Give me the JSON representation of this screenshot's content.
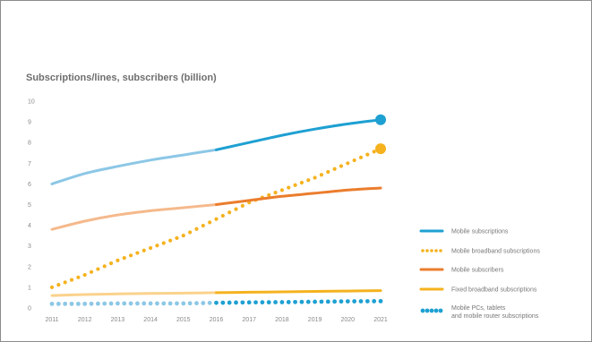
{
  "chart_data": {
    "type": "line",
    "title": "Subscriptions/lines, subscribers (billion)",
    "xlabel": "",
    "ylabel": "",
    "categories": [
      "2011",
      "2012",
      "2013",
      "2014",
      "2015",
      "2016",
      "2017",
      "2018",
      "2019",
      "2020",
      "2021"
    ],
    "ylim": [
      0,
      10
    ],
    "yticks": [
      "0",
      "1",
      "2",
      "3",
      "4",
      "5",
      "6",
      "7",
      "8",
      "9",
      "10"
    ],
    "grid": false,
    "legend_position": "right",
    "forecast_from": "2016",
    "series": [
      {
        "name": "Mobile subscriptions",
        "style": "solid",
        "color": "#1ea0d2",
        "light_color": "#8cc7e6",
        "end_marker": true,
        "values": [
          6.0,
          6.5,
          6.85,
          7.15,
          7.4,
          7.65,
          8.0,
          8.35,
          8.65,
          8.9,
          9.1
        ]
      },
      {
        "name": "Mobile broadband subscriptions",
        "style": "dotted",
        "color": "#f5b21e",
        "light_color": "#f5b21e",
        "end_marker": true,
        "values": [
          1.0,
          1.6,
          2.3,
          2.9,
          3.5,
          4.3,
          5.1,
          5.7,
          6.3,
          7.0,
          7.7
        ]
      },
      {
        "name": "Mobile subscribers",
        "style": "solid",
        "color": "#eb7d2d",
        "light_color": "#f5b98c",
        "end_marker": false,
        "values": [
          3.8,
          4.2,
          4.5,
          4.7,
          4.85,
          5.0,
          5.2,
          5.4,
          5.55,
          5.7,
          5.8
        ]
      },
      {
        "name": "Fixed broadband subscriptions",
        "style": "solid",
        "color": "#f5b21e",
        "light_color": "#fad28c",
        "end_marker": false,
        "values": [
          0.6,
          0.65,
          0.68,
          0.7,
          0.72,
          0.74,
          0.76,
          0.78,
          0.8,
          0.82,
          0.84
        ]
      },
      {
        "name": "Mobile PCs, tablets and mobile router subscriptions",
        "style": "dotted",
        "color": "#1ea0d2",
        "light_color": "#8cc7e6",
        "end_marker": false,
        "values": [
          0.2,
          0.2,
          0.22,
          0.22,
          0.22,
          0.25,
          0.27,
          0.28,
          0.3,
          0.32,
          0.33
        ]
      }
    ]
  }
}
